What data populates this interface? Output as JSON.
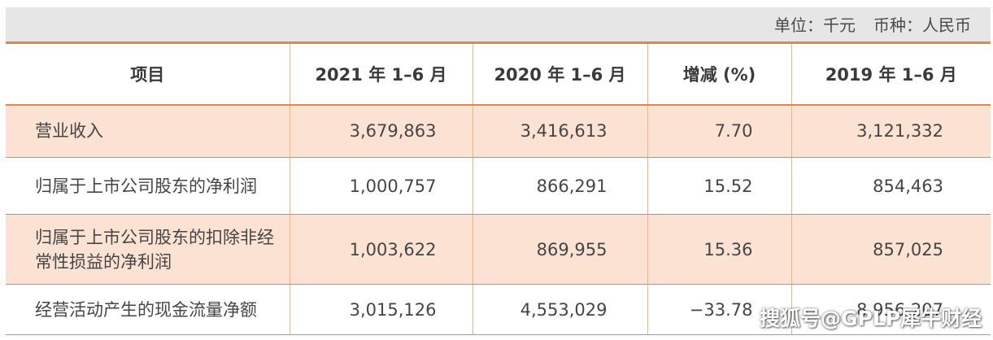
{
  "unit_bar": {
    "unit_text": "单位：千元",
    "currency_text": "币种：人民币"
  },
  "table": {
    "headers": [
      "项目",
      "2021 年 1–6 月",
      "2020 年 1–6 月",
      "增减 (%)",
      "2019 年 1–6 月"
    ],
    "rows": [
      {
        "label": "营业收入",
        "v2021": "3,679,863",
        "v2020": "3,416,613",
        "change": "7.70",
        "v2019": "3,121,332"
      },
      {
        "label": "归属于上市公司股东的净利润",
        "v2021": "1,000,757",
        "v2020": "866,291",
        "change": "15.52",
        "v2019": "854,463"
      },
      {
        "label": "归属于上市公司股东的扣除非经常性损益的净利润",
        "v2021": "1,003,622",
        "v2020": "869,955",
        "change": "15.36",
        "v2019": "857,025"
      },
      {
        "label": "经营活动产生的现金流量净额",
        "v2021": "3,015,126",
        "v2020": "4,553,029",
        "change": "−33.78",
        "v2019": "8,956,207"
      }
    ]
  },
  "watermark": "搜狐号@GPLP犀牛财经",
  "colors": {
    "accent": "#e8834e",
    "row_tint": "#fbe2d2",
    "unit_bar_bg": "#e6e6e6"
  }
}
